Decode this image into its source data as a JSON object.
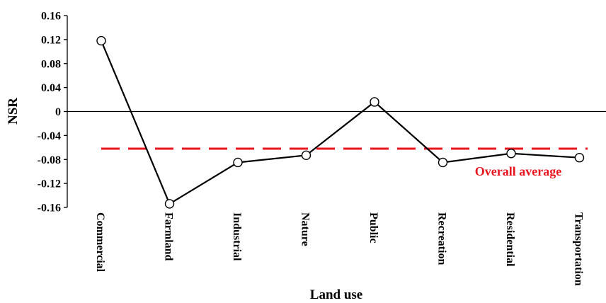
{
  "chart_data": {
    "type": "line",
    "title": "",
    "xlabel": "Land use",
    "ylabel": "NSR",
    "ylim": [
      -0.16,
      0.16
    ],
    "yticks": [
      0.16,
      0.12,
      0.08,
      0.04,
      0,
      -0.04,
      -0.08,
      -0.12,
      -0.16
    ],
    "ytick_labels": [
      "0.16",
      "0.12",
      "0.08",
      "0.04",
      "0",
      "-0.04",
      "-0.08",
      "-0.12",
      "-0.16"
    ],
    "categories": [
      "Commercial",
      "Farmland",
      "Industrial",
      "Nature",
      "Public",
      "Recreation",
      "Residential",
      "Transportation"
    ],
    "series": [
      {
        "values": [
          0.118,
          -0.154,
          -0.085,
          -0.073,
          0.016,
          -0.085,
          -0.07,
          -0.077
        ]
      }
    ],
    "reference_line": {
      "label": "Overall average",
      "value": -0.062,
      "color": "#e8141e",
      "style": "dashed"
    },
    "grid": false,
    "line_color": "#000000",
    "marker": "open-circle"
  }
}
